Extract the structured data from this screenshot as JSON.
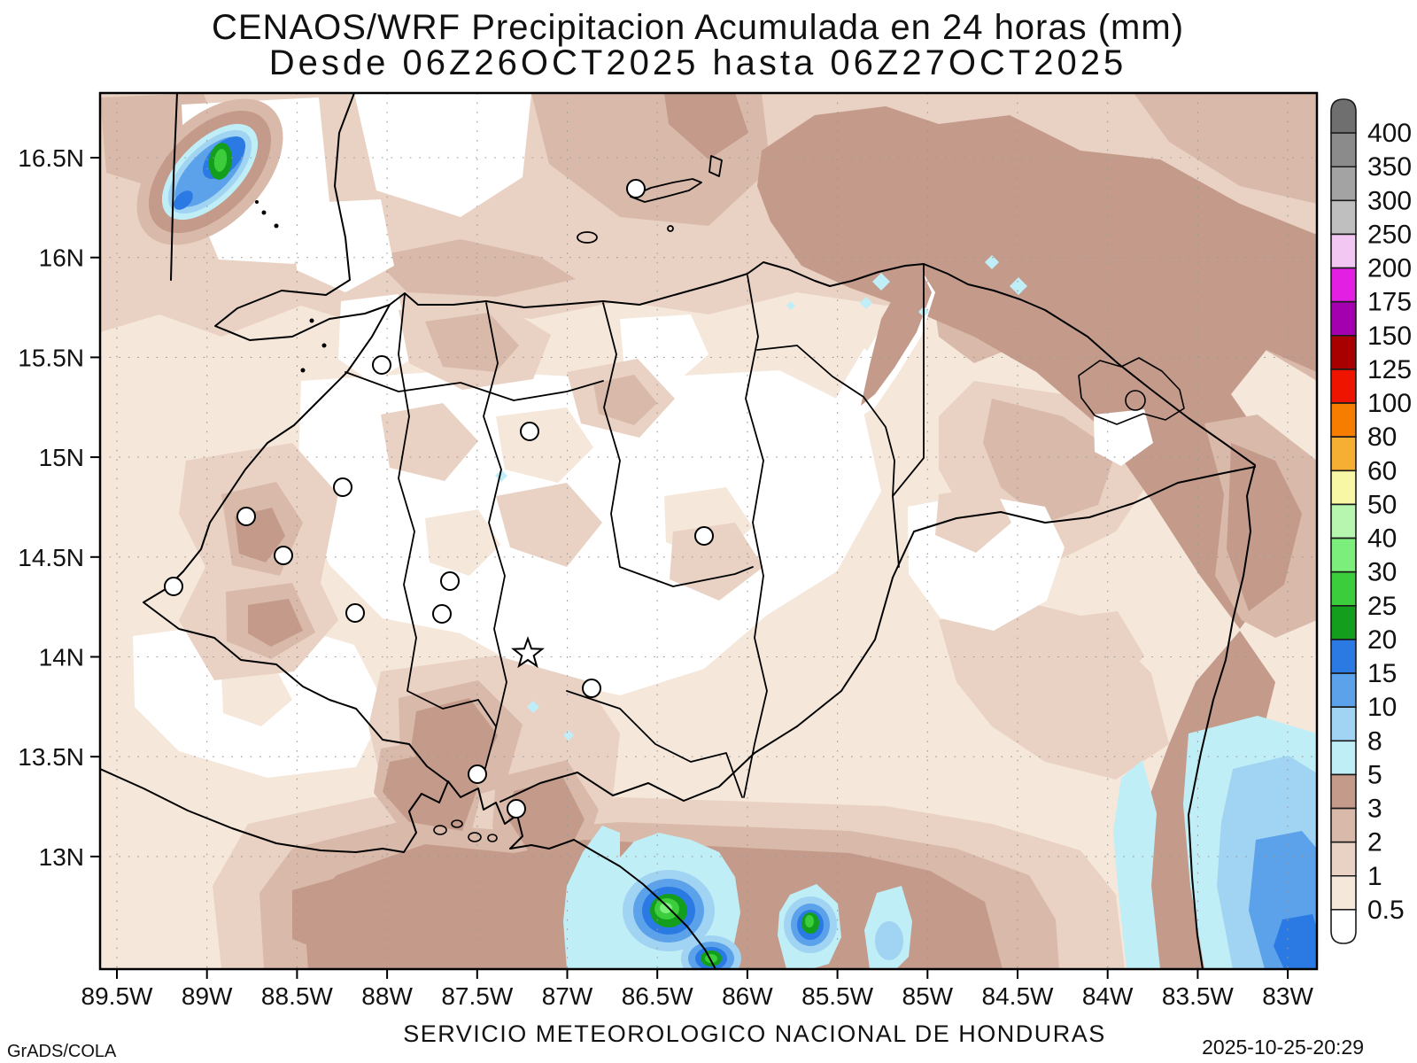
{
  "title": {
    "line1": "CENAOS/WRF Precipitacion Acumulada en 24 horas (mm)",
    "line2": "Desde 06Z26OCT2025 hasta 06Z27OCT2025"
  },
  "footer": {
    "agency": "SERVICIO METEOROLOGICO NACIONAL DE HONDURAS",
    "generator": "GrADS/COLA",
    "timestamp": "2025-10-25-20:29"
  },
  "chart_data": {
    "type": "heatmap",
    "title": "CENAOS/WRF Precipitacion Acumulada en 24 horas (mm)",
    "subtitle": "Desde 06Z26OCT2025 hasta 06Z27OCT2025",
    "units": "mm",
    "grid": "dotted, every 0.5 degree",
    "x_axis": {
      "labels": [
        "89.5W",
        "89W",
        "88.5W",
        "88W",
        "87.5W",
        "87W",
        "86.5W",
        "86W",
        "85.5W",
        "85W",
        "84.5W",
        "84W",
        "83.5W",
        "83W"
      ],
      "range_deg_west": [
        89.6,
        82.8
      ]
    },
    "y_axis": {
      "labels": [
        "16.5N",
        "16N",
        "15.5N",
        "15N",
        "14.5N",
        "14N",
        "13.5N",
        "13N"
      ],
      "range_deg_north": [
        12.44,
        16.82
      ]
    },
    "colorbar": {
      "position": "right",
      "boundary_labels": [
        "400",
        "350",
        "300",
        "250",
        "200",
        "175",
        "150",
        "125",
        "100",
        "80",
        "60",
        "50",
        "40",
        "30",
        "25",
        "20",
        "15",
        "10",
        "8",
        "5",
        "3",
        "2",
        "1",
        "0.5"
      ],
      "segment_colors_top_to_bottom": [
        "#6f6f6f",
        "#8b8b8b",
        "#a3a3a3",
        "#bfbfbf",
        "#f2c8f2",
        "#e21fe2",
        "#a500b0",
        "#a80000",
        "#ee1400",
        "#f67d00",
        "#f6ae33",
        "#f7f7a6",
        "#b6f6ae",
        "#7cee7c",
        "#3ccd3c",
        "#139e1e",
        "#2b7ae3",
        "#5ba2eb",
        "#a1d3f2",
        "#c0eef7",
        "#c49a8a",
        "#d9b9a9",
        "#e9d2c3",
        "#f5e7da",
        "#ffffff"
      ]
    },
    "map_region": "Honduras and surroundings (Belize, Guatemala, El Salvador, Nicaragua)",
    "features": {
      "precip_maxima_mm": [
        {
          "approx_location": "NW near 16.4N 89W",
          "peak_band": "25-30"
        },
        {
          "approx_location": "Pacific south near 12.9N 86.6W",
          "peak_band": "30-40"
        },
        {
          "approx_location": "south near 12.8N 85.6W",
          "peak_band": "25-30"
        },
        {
          "approx_location": "SE Caribbean offshore",
          "peak_band": "10-15"
        }
      ],
      "dry_band_mm": "interior mostly < 0.5 - 2"
    }
  },
  "layout_hints": {
    "legend_position": "right",
    "marker_note": "open circles = cities, star = Tegucigalpa"
  }
}
